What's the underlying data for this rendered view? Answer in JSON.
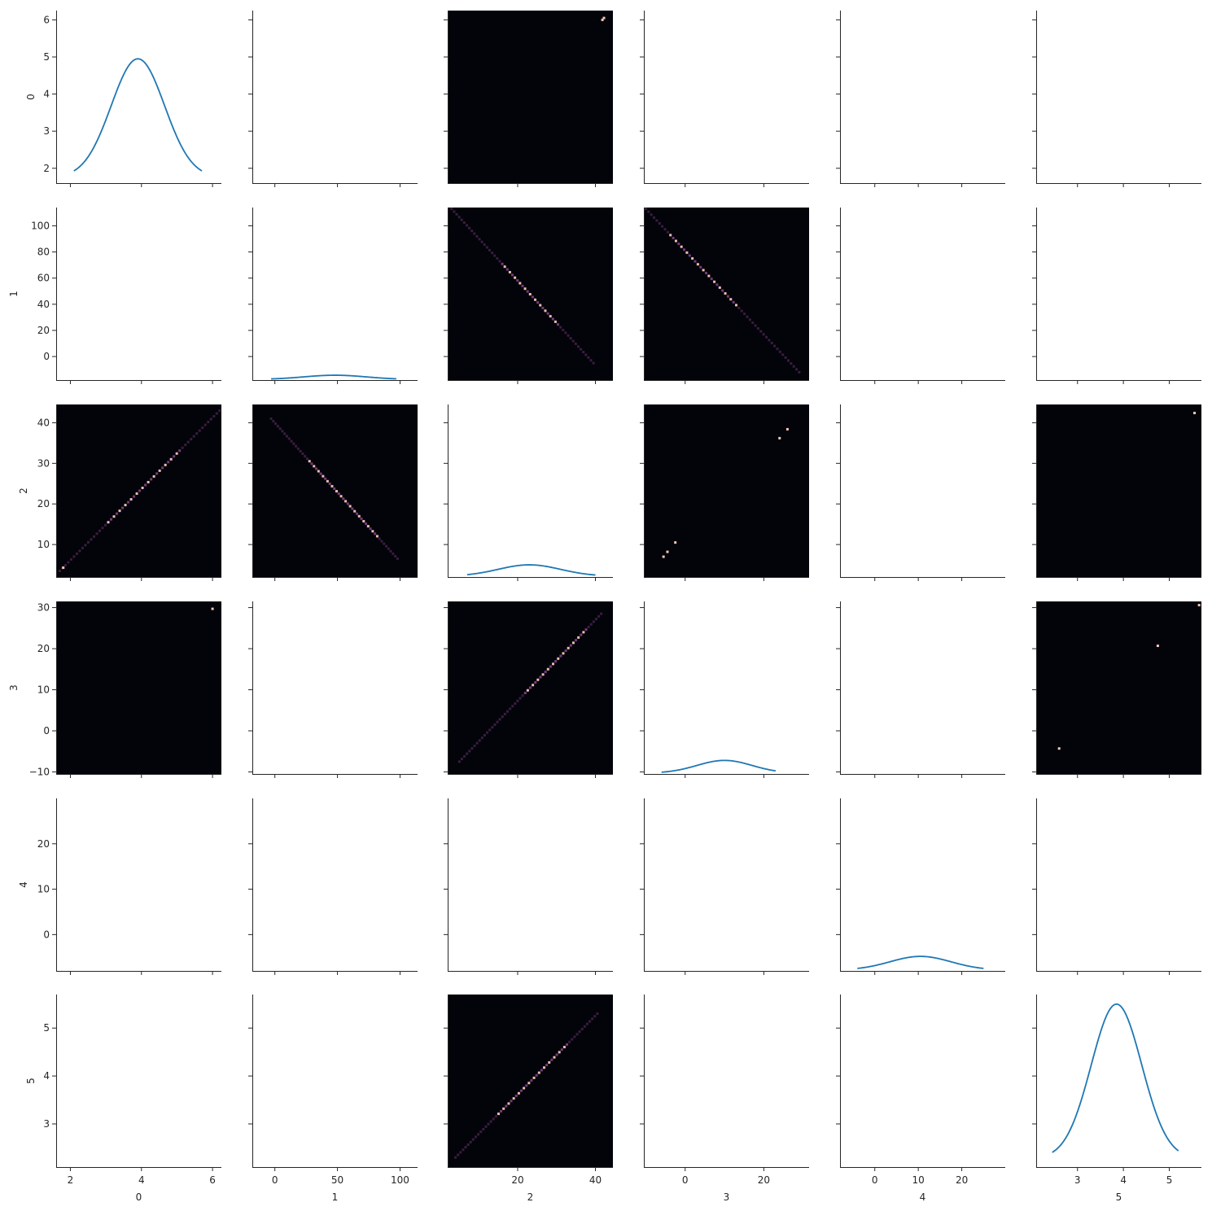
{
  "chart_data": {
    "type": "pairplot",
    "variables": [
      "0",
      "1",
      "2",
      "3",
      "4",
      "5"
    ],
    "colors": {
      "kde_line": "#1f77b4",
      "heatmap_bg": "#03030a",
      "heatmap_mid": "#7a3d7f",
      "heatmap_hot": "#f5c7b8"
    },
    "axes": [
      {
        "label": "0",
        "range": [
          1.6,
          6.25
        ],
        "ticks": [
          2,
          4,
          6
        ]
      },
      {
        "label": "1",
        "range": [
          -18,
          114
        ],
        "ticks": [
          0,
          50,
          100
        ]
      },
      {
        "label": "2",
        "range": [
          2.0,
          44.5
        ],
        "ticks": [
          20,
          40
        ]
      },
      {
        "label": "3",
        "range": [
          -10.5,
          31.5
        ],
        "ticks": [
          0,
          20
        ]
      },
      {
        "label": "4",
        "range": [
          -8,
          30
        ],
        "ticks": [
          0,
          10,
          20
        ]
      },
      {
        "label": "5",
        "range": [
          2.1,
          5.7
        ],
        "ticks": [
          3,
          4,
          5
        ]
      }
    ],
    "ytick_overrides": {
      "0": [
        2,
        3,
        4,
        5,
        6
      ],
      "1": [
        0,
        20,
        40,
        60,
        80,
        100
      ],
      "2": [
        10,
        20,
        30,
        40
      ],
      "3": [
        -10,
        0,
        10,
        20,
        30
      ],
      "4": [
        0,
        10,
        20
      ],
      "5": [
        3,
        4,
        5
      ]
    },
    "diagonal_kde": [
      {
        "var": 0,
        "x_span": [
          2.1,
          5.7
        ],
        "y_base": 1.75,
        "y_peak": 4.95,
        "center": 3.9,
        "sigma": 0.75
      },
      {
        "var": 1,
        "x_span": [
          -3,
          97
        ],
        "y_base": -17.5,
        "y_peak": -14.3,
        "center": 48,
        "sigma": 25
      },
      {
        "var": 2,
        "x_span": [
          7,
          40
        ],
        "y_base": 2.2,
        "y_peak": 5.0,
        "center": 23,
        "sigma": 8
      },
      {
        "var": 3,
        "x_span": [
          -6,
          23
        ],
        "y_base": -10.3,
        "y_peak": -7.2,
        "center": 10,
        "sigma": 7
      },
      {
        "var": 4,
        "x_span": [
          -4,
          25
        ],
        "y_base": -7.8,
        "y_peak": -4.8,
        "center": 10.5,
        "sigma": 7
      },
      {
        "var": 5,
        "x_span": [
          2.45,
          5.2
        ],
        "y_base": 2.28,
        "y_peak": 5.5,
        "center": 3.85,
        "sigma": 0.55
      }
    ],
    "heatmap_cells": [
      {
        "row": 0,
        "col": 2,
        "kind": "points",
        "points": [
          [
            41.8,
            6.0
          ],
          [
            42.2,
            6.05
          ]
        ]
      },
      {
        "row": 1,
        "col": 2,
        "kind": "line",
        "from": [
          3,
          113
        ],
        "to": [
          39.5,
          -5
        ],
        "bright_range": [
          0.35,
          0.75
        ]
      },
      {
        "row": 1,
        "col": 3,
        "kind": "line",
        "from": [
          -10,
          113
        ],
        "to": [
          29,
          -12
        ],
        "bright_range": [
          0.15,
          0.6
        ]
      },
      {
        "row": 2,
        "col": 0,
        "kind": "line",
        "from": [
          1.7,
          3.5
        ],
        "to": [
          6.2,
          43
        ],
        "bright_range": [
          0.3,
          0.75
        ],
        "extra_points": [
          [
            1.8,
            4.3
          ]
        ]
      },
      {
        "row": 2,
        "col": 1,
        "kind": "line",
        "from": [
          -3,
          41
        ],
        "to": [
          98,
          6.5
        ],
        "bright_range": [
          0.3,
          0.85
        ]
      },
      {
        "row": 2,
        "col": 3,
        "kind": "points",
        "points": [
          [
            -5.5,
            7.0
          ],
          [
            -4.5,
            8.2
          ],
          [
            -2.5,
            10.5
          ],
          [
            24,
            36.2
          ],
          [
            26,
            38.4
          ]
        ]
      },
      {
        "row": 2,
        "col": 5,
        "kind": "points",
        "points": [
          [
            5.55,
            42.4
          ]
        ]
      },
      {
        "row": 3,
        "col": 0,
        "kind": "points",
        "points": [
          [
            6.0,
            29.7
          ]
        ]
      },
      {
        "row": 3,
        "col": 2,
        "kind": "line",
        "from": [
          5,
          -7.5
        ],
        "to": [
          41.5,
          28.5
        ],
        "bright_range": [
          0.45,
          0.9
        ]
      },
      {
        "row": 3,
        "col": 5,
        "kind": "points",
        "points": [
          [
            2.6,
            -4.3
          ],
          [
            4.75,
            20.7
          ],
          [
            5.65,
            30.6
          ]
        ]
      },
      {
        "row": 5,
        "col": 2,
        "kind": "line",
        "from": [
          4,
          2.3
        ],
        "to": [
          40.5,
          5.3
        ],
        "bright_range": [
          0.3,
          0.8
        ]
      }
    ]
  }
}
